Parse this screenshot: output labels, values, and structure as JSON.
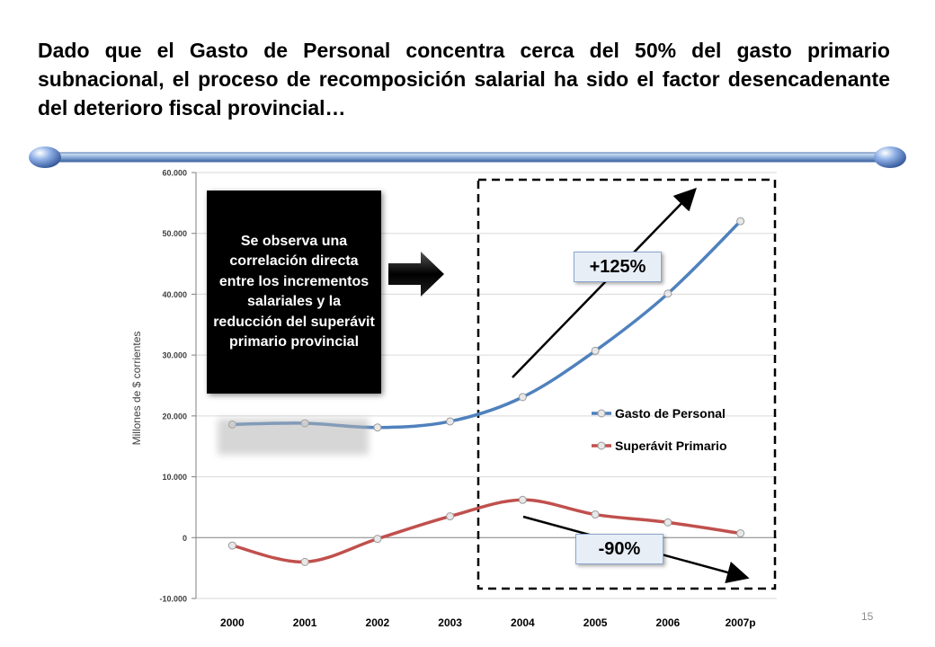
{
  "slide": {
    "title": "Dado que el Gasto de Personal concentra cerca del 50% del gasto primario subnacional, el proceso de recomposición salarial ha sido el factor desencadenante del deterioro fiscal provincial…",
    "callout": "Se observa una correlación directa entre los incrementos salariales y la reducción del superávit primario provincial",
    "badge_up": "+125%",
    "badge_down": "-90%",
    "page_number": "15"
  },
  "chart_data": {
    "type": "line",
    "categories": [
      "2000",
      "2001",
      "2002",
      "2003",
      "2004",
      "2005",
      "2006",
      "2007p"
    ],
    "ylabel": "Millones de $ corrientes",
    "ylim": [
      -10000,
      60000
    ],
    "yticks": [
      -10000,
      0,
      10000,
      20000,
      30000,
      40000,
      50000,
      60000
    ],
    "ytick_labels": [
      "-10.000",
      "0",
      "10.000",
      "20.000",
      "30.000",
      "40.000",
      "50.000",
      "60.000"
    ],
    "legend_position": "right",
    "series": [
      {
        "name": "Gasto de Personal",
        "color": "#4f81bd",
        "values": [
          18600,
          18800,
          18100,
          19100,
          23100,
          30700,
          40100,
          52000
        ]
      },
      {
        "name": "Superávit Primario",
        "color": "#c0504d",
        "values": [
          -1300,
          -4000,
          -200,
          3500,
          6200,
          3800,
          2500,
          700
        ]
      }
    ]
  }
}
